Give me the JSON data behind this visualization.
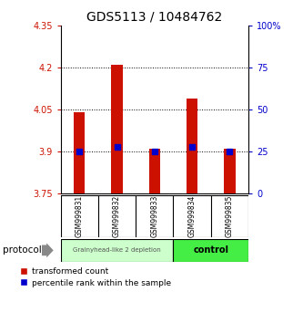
{
  "title": "GDS5113 / 10484762",
  "samples": [
    "GSM999831",
    "GSM999832",
    "GSM999833",
    "GSM999834",
    "GSM999835"
  ],
  "bar_bottom": 3.75,
  "bar_tops": [
    4.04,
    4.21,
    3.91,
    4.09,
    3.91
  ],
  "percentile_ranks": [
    25,
    28,
    25,
    28,
    25
  ],
  "ylim_left": [
    3.75,
    4.35
  ],
  "ylim_right": [
    0,
    100
  ],
  "yticks_left": [
    3.75,
    3.9,
    4.05,
    4.2,
    4.35
  ],
  "yticks_right": [
    0,
    25,
    50,
    75,
    100
  ],
  "ytick_labels_right": [
    "0",
    "25",
    "50",
    "75",
    "100%"
  ],
  "bar_color": "#cc1100",
  "blue_color": "#0000cc",
  "group1_label": "Grainyhead-like 2 depletion",
  "group2_label": "control",
  "group1_color": "#ccffcc",
  "group2_color": "#44ee44",
  "protocol_label": "protocol",
  "legend_red_label": "transformed count",
  "legend_blue_label": "percentile rank within the sample",
  "background_color": "#ffffff",
  "title_fontsize": 10,
  "tick_label_color_left": "#cc1100",
  "tick_label_color_right": "#0000cc",
  "names_box_color": "#cccccc",
  "bar_width": 0.3
}
